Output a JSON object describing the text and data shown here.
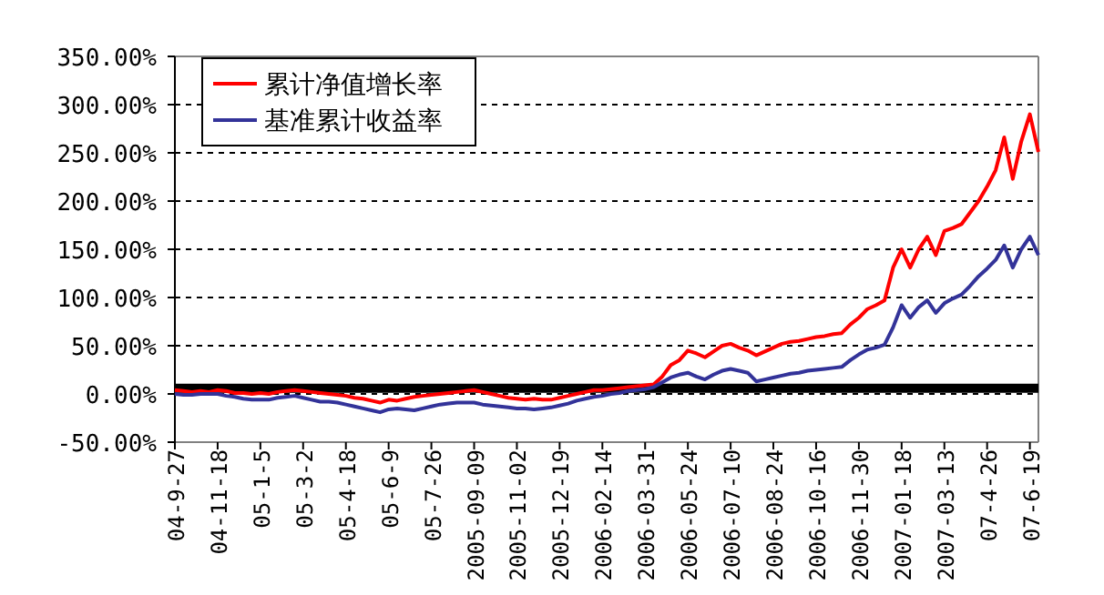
{
  "chart_data": {
    "type": "line",
    "categories": [
      "04-9-27",
      null,
      null,
      null,
      null,
      "04-11-18",
      null,
      null,
      null,
      null,
      "05-1-5",
      null,
      null,
      null,
      null,
      "05-3-2",
      null,
      null,
      null,
      null,
      "05-4-18",
      null,
      null,
      null,
      null,
      "05-6-9",
      null,
      null,
      null,
      null,
      "05-7-26",
      null,
      null,
      null,
      null,
      "2005-09-09",
      null,
      null,
      null,
      null,
      "2005-11-02",
      null,
      null,
      null,
      null,
      "2005-12-19",
      null,
      null,
      null,
      null,
      "2006-02-14",
      null,
      null,
      null,
      null,
      "2006-03-31",
      null,
      null,
      null,
      null,
      "2006-05-24",
      null,
      null,
      null,
      null,
      "2006-07-10",
      null,
      null,
      null,
      null,
      "2006-08-24",
      null,
      null,
      null,
      null,
      "2006-10-16",
      null,
      null,
      null,
      null,
      "2006-11-30",
      null,
      null,
      null,
      null,
      "2007-01-18",
      null,
      null,
      null,
      null,
      "2007-03-13",
      null,
      null,
      null,
      null,
      "07-4-26",
      null,
      null,
      null,
      null,
      "07-6-19",
      null
    ],
    "series": [
      {
        "name": "累计净值增长率",
        "color": "#ff0000",
        "values": [
          4,
          3,
          2,
          3,
          2,
          4,
          3,
          1,
          1,
          0,
          1,
          0,
          2,
          3,
          4,
          3,
          2,
          1,
          0,
          -1,
          -2,
          -4,
          -5,
          -7,
          -9,
          -6,
          -7,
          -5,
          -3,
          -2,
          -1,
          0,
          1,
          2,
          3,
          4,
          2,
          0,
          -2,
          -4,
          -5,
          -6,
          -5,
          -6,
          -6,
          -4,
          -2,
          0,
          2,
          4,
          4,
          5,
          6,
          7,
          8,
          9,
          10,
          18,
          30,
          35,
          45,
          42,
          38,
          44,
          50,
          52,
          48,
          45,
          40,
          44,
          48,
          52,
          54,
          55,
          57,
          59,
          60,
          62,
          63,
          72,
          79,
          88,
          92,
          97,
          131,
          150,
          131,
          150,
          163,
          144,
          169,
          172,
          176,
          188,
          200,
          215,
          232,
          266,
          223,
          262,
          290,
          251
        ]
      },
      {
        "name": "基准累计收益率",
        "color": "#333399",
        "values": [
          0,
          -1,
          -1,
          0,
          0,
          0,
          -2,
          -3,
          -5,
          -6,
          -6,
          -6,
          -4,
          -3,
          -2,
          -4,
          -6,
          -8,
          -8,
          -9,
          -11,
          -13,
          -15,
          -17,
          -19,
          -16,
          -15,
          -16,
          -17,
          -15,
          -13,
          -11,
          -10,
          -9,
          -9,
          -9,
          -11,
          -12,
          -13,
          -14,
          -15,
          -15,
          -16,
          -15,
          -14,
          -12,
          -10,
          -7,
          -5,
          -3,
          -2,
          0,
          1,
          3,
          4,
          5,
          7,
          12,
          17,
          20,
          22,
          18,
          15,
          20,
          24,
          26,
          24,
          22,
          13,
          15,
          17,
          19,
          21,
          22,
          24,
          25,
          26,
          27,
          28,
          35,
          41,
          46,
          48,
          51,
          69,
          92,
          79,
          90,
          97,
          84,
          94,
          99,
          103,
          112,
          122,
          130,
          139,
          154,
          131,
          150,
          163,
          144
        ]
      }
    ],
    "ylim": [
      -50,
      350
    ],
    "yticks": [
      {
        "value": -50,
        "label": "-50.00%"
      },
      {
        "value": 0,
        "label": "0.00%"
      },
      {
        "value": 50,
        "label": "50.00%"
      },
      {
        "value": 100,
        "label": "100.00%"
      },
      {
        "value": 150,
        "label": "150.00%"
      },
      {
        "value": 200,
        "label": "200.00%"
      },
      {
        "value": 250,
        "label": "250.00%"
      },
      {
        "value": 300,
        "label": "300.00%"
      },
      {
        "value": 350,
        "label": "350.00%"
      }
    ],
    "ref_lines": [
      {
        "axis": "y",
        "value": 6,
        "color": "#000000"
      }
    ],
    "grid": "y",
    "legend": "top left",
    "marker": "none",
    "line_style": "solid"
  }
}
